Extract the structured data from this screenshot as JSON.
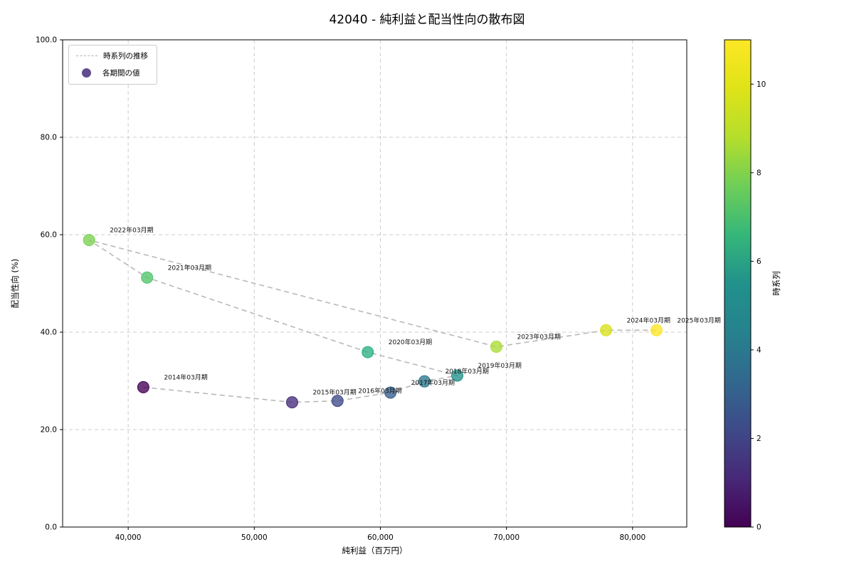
{
  "chart_data": {
    "type": "scatter",
    "title": "42040 - 純利益と配当性向の散布図",
    "xlabel": "純利益（百万円）",
    "ylabel": "配当性向 (%)",
    "xlim": [
      34800,
      84300
    ],
    "ylim": [
      0,
      100
    ],
    "xticks": [
      40000,
      50000,
      60000,
      70000,
      80000
    ],
    "xtick_labels": [
      "40,000",
      "50,000",
      "60,000",
      "70,000",
      "80,000"
    ],
    "yticks": [
      0,
      20,
      40,
      60,
      80,
      100
    ],
    "ytick_labels": [
      "0.0",
      "20.0",
      "40.0",
      "60.0",
      "80.0",
      "100.0"
    ],
    "grid": true,
    "legend_labels": [
      "時系列の推移",
      "各期間の値"
    ],
    "legend_marker_color": "#472d7b",
    "trend_line_color": "#b0b0b0",
    "colorbar": {
      "label": "時系列",
      "min": 0,
      "max": 11,
      "ticks": [
        0,
        2,
        4,
        6,
        8,
        10
      ],
      "colormap": "viridis",
      "stops": [
        "#440154",
        "#482878",
        "#3e4a89",
        "#31688e",
        "#26828e",
        "#21918c",
        "#35b779",
        "#6ece58",
        "#b5de2b",
        "#dfe318",
        "#fde725"
      ]
    },
    "points": [
      {
        "label": "2014年03月期",
        "x": 41200,
        "y": 28.7,
        "t": 0,
        "color": "#440154"
      },
      {
        "label": "2015年03月期",
        "x": 53000,
        "y": 25.6,
        "t": 1,
        "color": "#472d7b"
      },
      {
        "label": "2016年03月期",
        "x": 56600,
        "y": 25.9,
        "t": 2,
        "color": "#3e4a89"
      },
      {
        "label": "2017年03月期",
        "x": 60800,
        "y": 27.6,
        "t": 3,
        "color": "#355f8d"
      },
      {
        "label": "2018年03月期",
        "x": 63500,
        "y": 29.9,
        "t": 4,
        "color": "#2a788e"
      },
      {
        "label": "2019年03月期",
        "x": 66100,
        "y": 31.1,
        "t": 5,
        "color": "#21918c"
      },
      {
        "label": "2020年03月期",
        "x": 59000,
        "y": 35.9,
        "t": 6,
        "color": "#2ab07f"
      },
      {
        "label": "2021年03月期",
        "x": 41500,
        "y": 51.2,
        "t": 7,
        "color": "#50c46a"
      },
      {
        "label": "2022年03月期",
        "x": 36900,
        "y": 58.9,
        "t": 8,
        "color": "#7ad151"
      },
      {
        "label": "2023年03月期",
        "x": 69200,
        "y": 37.0,
        "t": 9,
        "color": "#abdc32"
      },
      {
        "label": "2024年03月期",
        "x": 77900,
        "y": 40.4,
        "t": 10,
        "color": "#d8e219"
      },
      {
        "label": "2025年03月期",
        "x": 81900,
        "y": 40.4,
        "t": 11,
        "color": "#fde725"
      }
    ]
  }
}
